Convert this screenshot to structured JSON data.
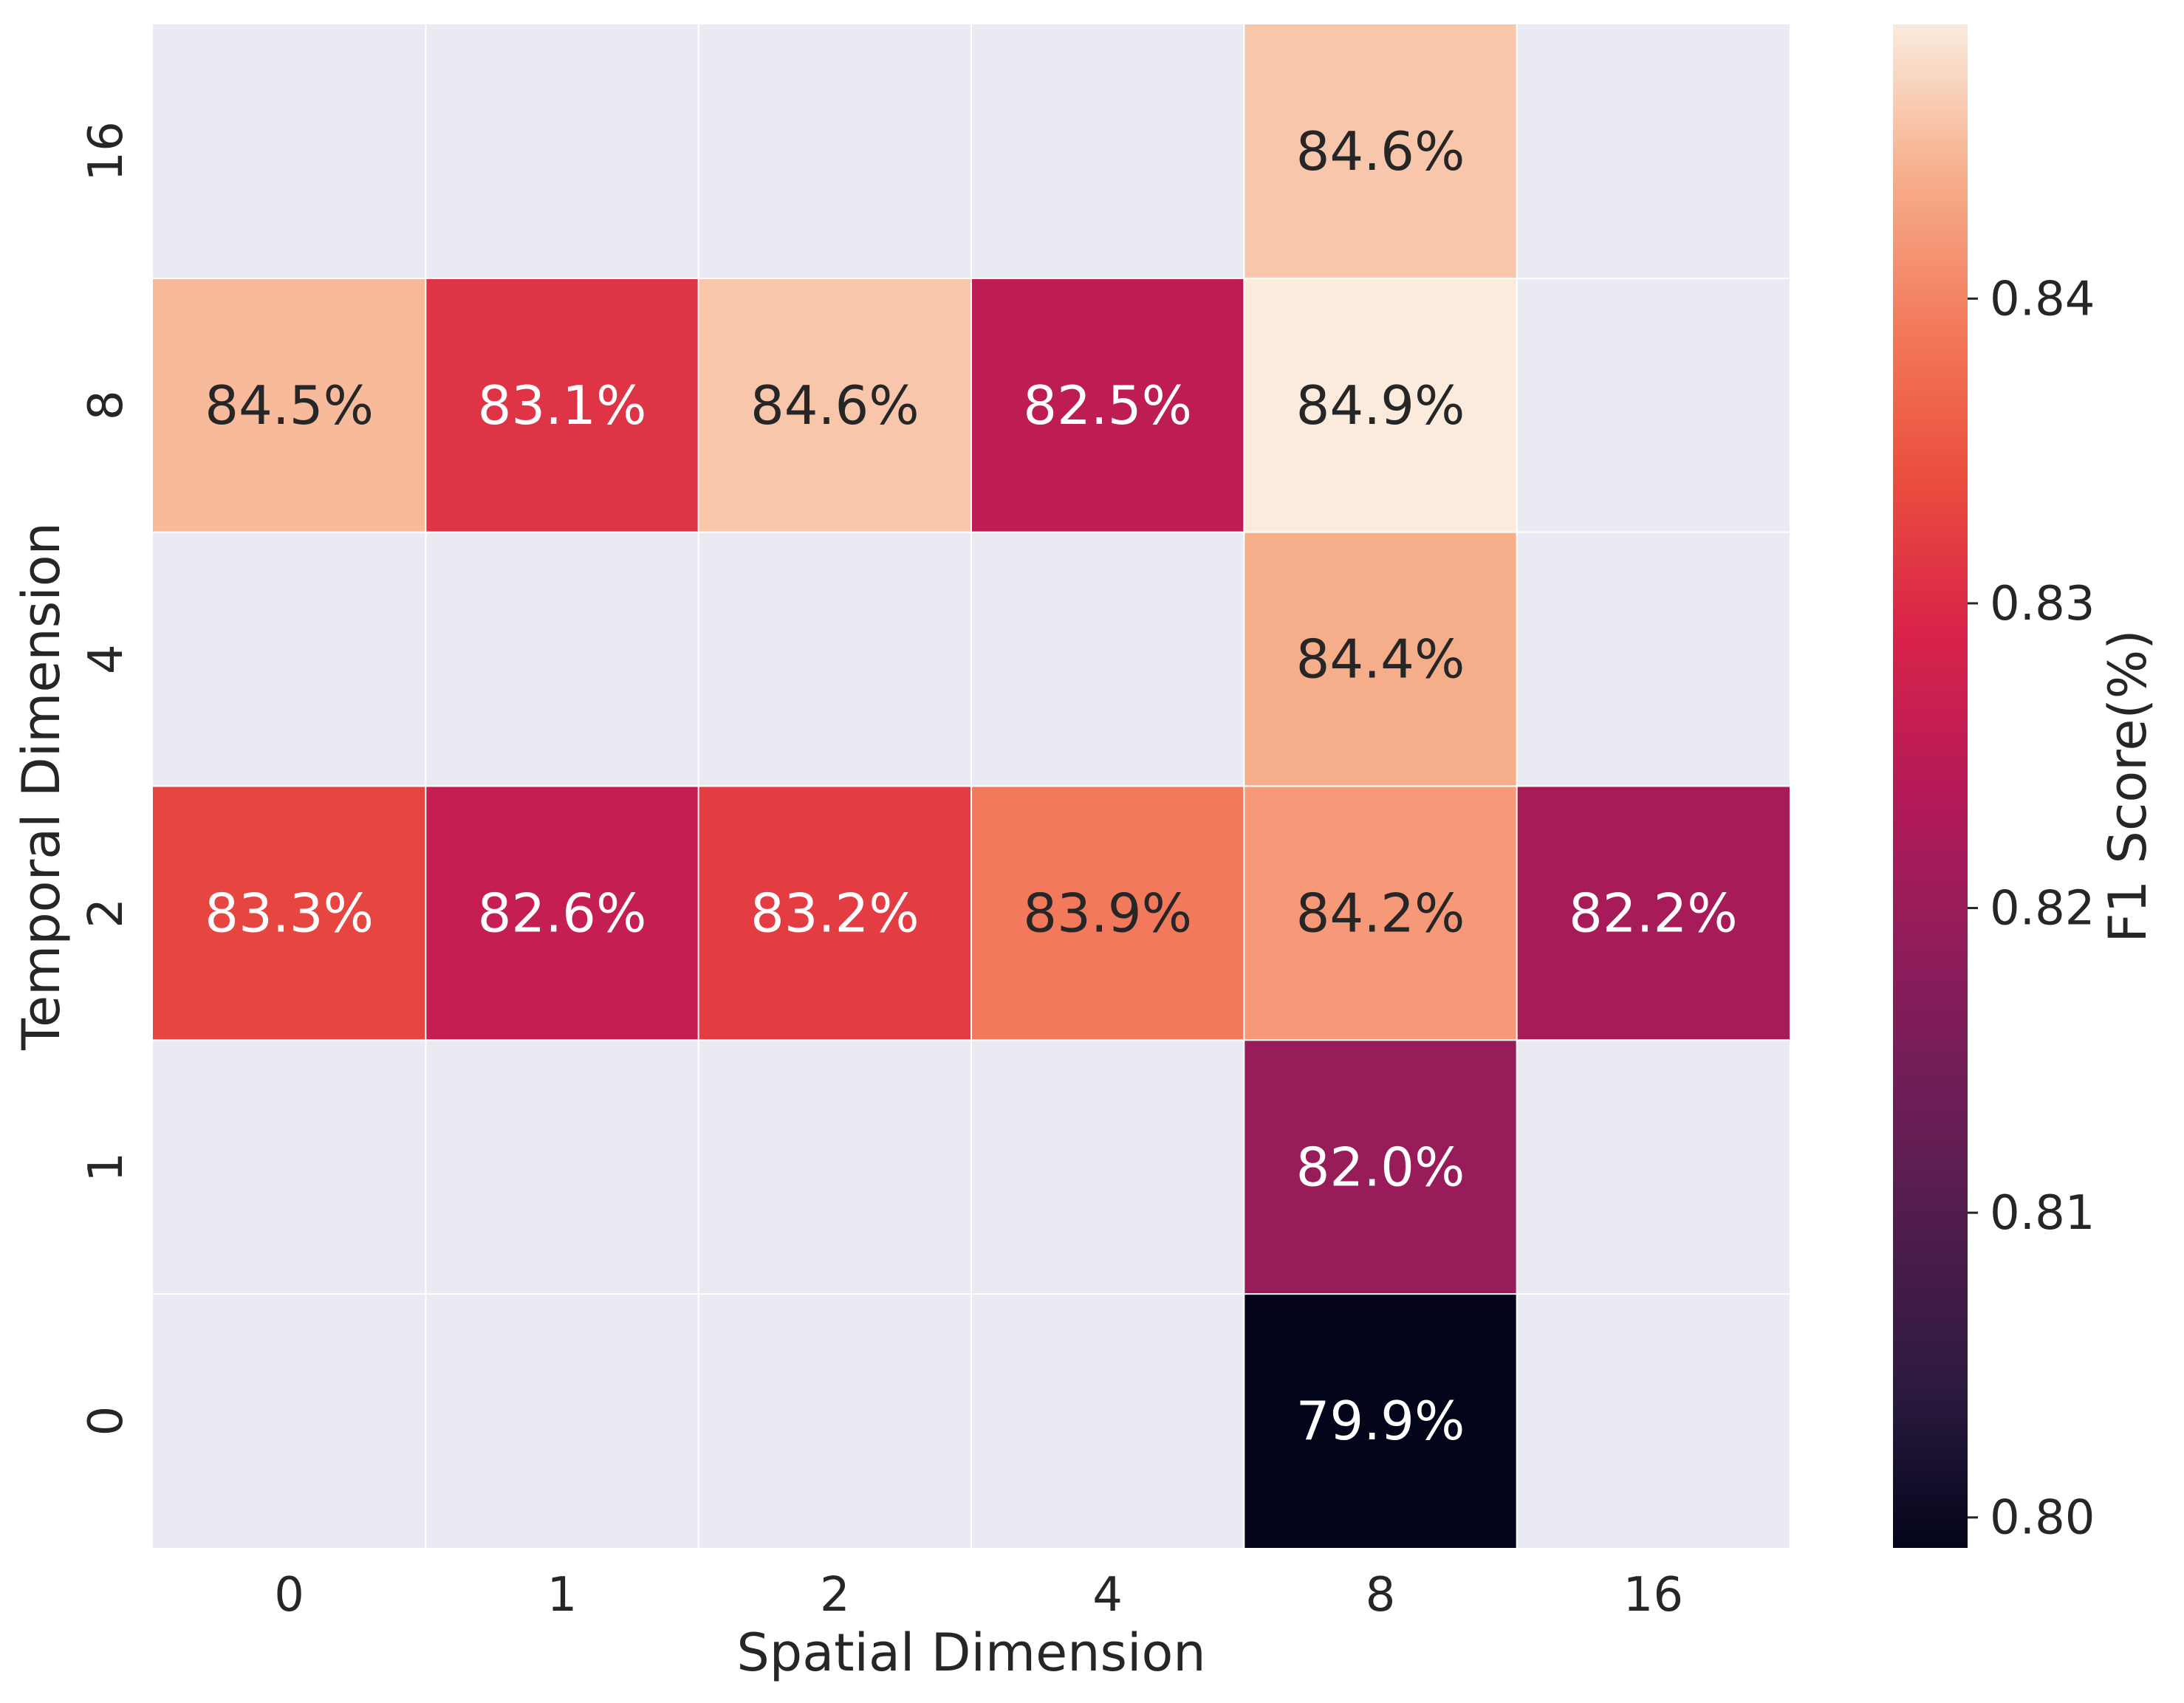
{
  "chart_data": {
    "type": "heatmap",
    "xlabel": "Spatial Dimension",
    "ylabel": "Temporal Dimension",
    "x_categories": [
      "0",
      "1",
      "2",
      "4",
      "8",
      "16"
    ],
    "y_categories": [
      "16",
      "8",
      "4",
      "2",
      "1",
      "0"
    ],
    "cells": [
      {
        "x": "8",
        "y": "16",
        "value": 0.846,
        "label": "84.6%"
      },
      {
        "x": "0",
        "y": "8",
        "value": 0.845,
        "label": "84.5%"
      },
      {
        "x": "1",
        "y": "8",
        "value": 0.831,
        "label": "83.1%"
      },
      {
        "x": "2",
        "y": "8",
        "value": 0.846,
        "label": "84.6%"
      },
      {
        "x": "4",
        "y": "8",
        "value": 0.825,
        "label": "82.5%"
      },
      {
        "x": "8",
        "y": "8",
        "value": 0.849,
        "label": "84.9%"
      },
      {
        "x": "8",
        "y": "4",
        "value": 0.844,
        "label": "84.4%"
      },
      {
        "x": "0",
        "y": "2",
        "value": 0.833,
        "label": "83.3%"
      },
      {
        "x": "1",
        "y": "2",
        "value": 0.826,
        "label": "82.6%"
      },
      {
        "x": "2",
        "y": "2",
        "value": 0.832,
        "label": "83.2%"
      },
      {
        "x": "4",
        "y": "2",
        "value": 0.839,
        "label": "83.9%"
      },
      {
        "x": "8",
        "y": "2",
        "value": 0.842,
        "label": "84.2%"
      },
      {
        "x": "16",
        "y": "2",
        "value": 0.822,
        "label": "82.2%"
      },
      {
        "x": "8",
        "y": "1",
        "value": 0.82,
        "label": "82.0%"
      },
      {
        "x": "8",
        "y": "0",
        "value": 0.799,
        "label": "79.9%"
      }
    ],
    "colorbar": {
      "label": "F1 Score(%)",
      "range": [
        0.799,
        0.849
      ],
      "ticks": [
        0.8,
        0.81,
        0.82,
        0.83,
        0.84
      ],
      "tick_labels": [
        "0.80",
        "0.81",
        "0.82",
        "0.83",
        "0.84"
      ],
      "colormap": "rocket"
    },
    "missing_color": "#eaeaf2",
    "grid": true
  }
}
